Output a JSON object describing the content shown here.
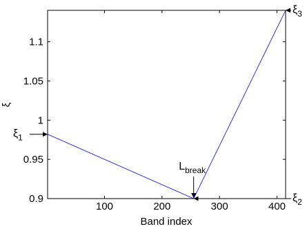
{
  "chart_data": {
    "type": "line",
    "xlabel": "Band index",
    "ylabel": "ξ",
    "xlim": [
      1,
      415
    ],
    "ylim": [
      0.9,
      1.14
    ],
    "xticks": [
      100,
      200,
      300,
      400
    ],
    "yticks": [
      0.9,
      0.95,
      1.0,
      1.05,
      1.1
    ],
    "xtick_labels": [
      "100",
      "200",
      "300",
      "400"
    ],
    "ytick_labels": [
      "0.9",
      "0.95",
      "1",
      "1.05",
      "1.1"
    ],
    "grid": false,
    "series": [
      {
        "color": "#0000ff",
        "x": [
          1,
          255,
          415
        ],
        "y": [
          0.982,
          0.9,
          1.14
        ]
      }
    ],
    "annotations": [
      {
        "id": "xi1",
        "base": "ξ",
        "sub": "1",
        "x": 1,
        "y": 0.982,
        "side": "left"
      },
      {
        "id": "xi2",
        "base": "ξ",
        "sub": "2",
        "x": 255,
        "y": 0.9,
        "side": "right"
      },
      {
        "id": "xi3",
        "base": "ξ",
        "sub": "3",
        "x": 415,
        "y": 1.14,
        "side": "right"
      },
      {
        "id": "lbreak",
        "base": "L",
        "sub": "break",
        "x": 255,
        "y": 0.9,
        "side": "top"
      }
    ]
  }
}
